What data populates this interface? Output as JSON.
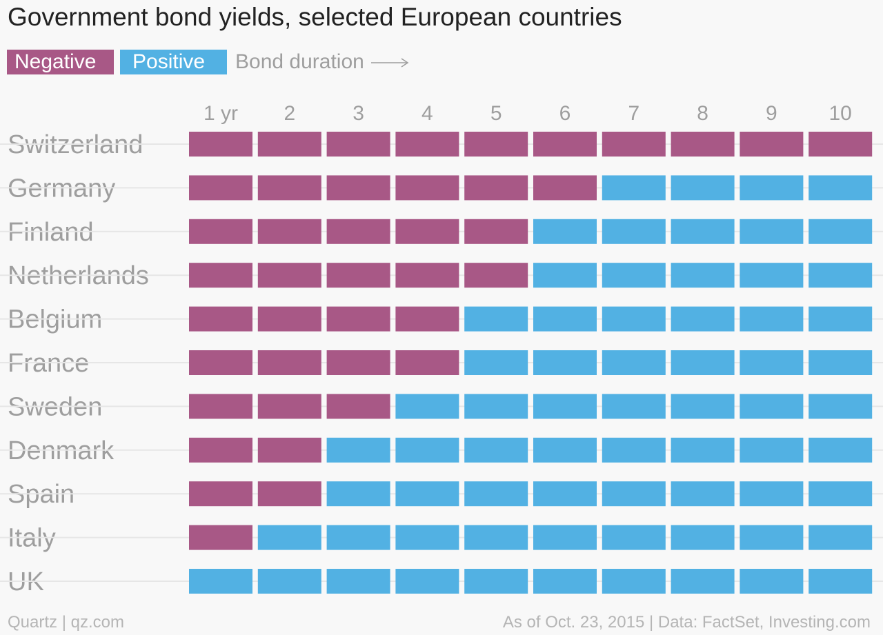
{
  "colors": {
    "negative": "#a85886",
    "positive": "#52b1e3",
    "gridline": "#e6e6e6",
    "label": "#9e9e9e"
  },
  "legend": {
    "negative_label": "Negative",
    "positive_label": "Positive",
    "duration_label": "Bond duration"
  },
  "footer": {
    "source_left": "Quartz | qz.com",
    "source_right": "As of Oct. 23, 2015 | Data: FactSet, Investing.com"
  },
  "chart_data": {
    "type": "heatmap",
    "title": "Government bond yields, selected European countries",
    "columns": [
      "1 yr",
      "2",
      "3",
      "4",
      "5",
      "6",
      "7",
      "8",
      "9",
      "10"
    ],
    "rows": [
      {
        "country": "Switzerland",
        "negative_through_year": 10
      },
      {
        "country": "Germany",
        "negative_through_year": 6
      },
      {
        "country": "Finland",
        "negative_through_year": 5
      },
      {
        "country": "Netherlands",
        "negative_through_year": 5
      },
      {
        "country": "Belgium",
        "negative_through_year": 4
      },
      {
        "country": "France",
        "negative_through_year": 4
      },
      {
        "country": "Sweden",
        "negative_through_year": 3
      },
      {
        "country": "Denmark",
        "negative_through_year": 2
      },
      {
        "country": "Spain",
        "negative_through_year": 2
      },
      {
        "country": "Italy",
        "negative_through_year": 1
      },
      {
        "country": "UK",
        "negative_through_year": 0
      }
    ],
    "legend": [
      "Negative",
      "Positive"
    ]
  }
}
